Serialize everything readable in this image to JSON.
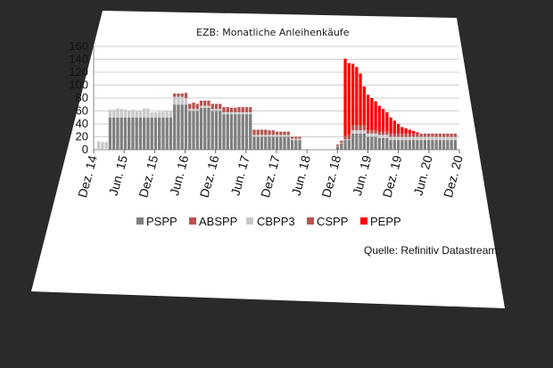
{
  "chart_data": {
    "type": "bar",
    "title": "EZB: Monatliche Anleihenkäufe",
    "source": "Quelle: Refinitiv Datastream",
    "ylim": [
      0,
      160
    ],
    "yticks": [
      "0",
      "20",
      "40",
      "60",
      "80",
      "100",
      "120",
      "140",
      "160"
    ],
    "xticks": [
      "Dez. 14",
      "Jun. 15",
      "Dez. 15",
      "Jun. 16",
      "Dez. 16",
      "Jun. 17",
      "Dez. 17",
      "Jun. 18",
      "Dez. 18",
      "Jun. 19",
      "Dez. 19",
      "Jun. 20",
      "Dez. 20"
    ],
    "grid": true,
    "legend_position": "bottom",
    "stacked": true,
    "colors": {
      "PSPP": "#7f7f7f",
      "ABSPP": "#c0504d",
      "CBPP3": "#c8c8c8",
      "CSPP": "#b85450",
      "PEPP": "#ff0000",
      "background": "#2a2a2a",
      "panel": "#ffffff"
    },
    "series": [
      {
        "name": "PSPP",
        "values": [
          0,
          0,
          0,
          50,
          50,
          50,
          50,
          50,
          50,
          50,
          50,
          50,
          50,
          50,
          50,
          50,
          50,
          50,
          50,
          50,
          70,
          70,
          70,
          70,
          60,
          60,
          60,
          65,
          65,
          65,
          60,
          60,
          60,
          55,
          55,
          55,
          55,
          55,
          55,
          55,
          55,
          20,
          20,
          20,
          20,
          20,
          20,
          20,
          20,
          20,
          20,
          15,
          15,
          15,
          0,
          0,
          0,
          0,
          0,
          0,
          0,
          0,
          0,
          5,
          10,
          15,
          15,
          25,
          25,
          25,
          25,
          20,
          20,
          20,
          18,
          18,
          18,
          15,
          15,
          15,
          15,
          15,
          15,
          15,
          15,
          15,
          15,
          15,
          15,
          15,
          15,
          15,
          15,
          15,
          15
        ]
      },
      {
        "name": "ABSPP",
        "values": [
          0,
          0,
          0,
          0,
          0,
          0,
          0,
          0,
          0,
          0,
          0,
          0,
          0,
          0,
          0,
          0,
          0,
          0,
          0,
          0,
          0,
          0,
          0,
          0,
          0,
          0,
          0,
          0,
          0,
          0,
          0,
          0,
          0,
          0,
          0,
          0,
          0,
          0,
          0,
          0,
          0,
          0,
          0,
          0,
          0,
          0,
          0,
          0,
          0,
          0,
          0,
          0,
          0,
          0,
          0,
          0,
          0,
          0,
          0,
          0,
          0,
          0,
          0,
          0,
          0,
          0,
          0,
          0,
          0,
          0,
          0,
          0,
          0,
          0,
          0,
          0,
          0,
          0,
          0,
          0,
          0,
          0,
          0,
          0,
          0,
          0,
          0,
          0,
          0,
          0,
          0,
          0,
          0,
          0,
          0
        ]
      },
      {
        "name": "CBPP3",
        "values": [
          13,
          12,
          12,
          12,
          12,
          14,
          13,
          12,
          10,
          12,
          10,
          11,
          14,
          14,
          8,
          8,
          9,
          9,
          10,
          10,
          12,
          12,
          12,
          10,
          3,
          3,
          3,
          3,
          3,
          3,
          3,
          3,
          3,
          3,
          3,
          3,
          3,
          3,
          3,
          3,
          3,
          3,
          3,
          3,
          3,
          3,
          3,
          3,
          3,
          3,
          3,
          2,
          2,
          2,
          1,
          1,
          1,
          1,
          1,
          1,
          1,
          1,
          1,
          1,
          1,
          1,
          1,
          5,
          5,
          5,
          5,
          5,
          5,
          5,
          5,
          5,
          5,
          5,
          5,
          5,
          5,
          5,
          5,
          5,
          5,
          5,
          5,
          5,
          5,
          5,
          5,
          5,
          5,
          5,
          5
        ]
      },
      {
        "name": "CSPP",
        "values": [
          0,
          0,
          0,
          0,
          0,
          0,
          0,
          0,
          0,
          0,
          0,
          0,
          0,
          0,
          0,
          0,
          0,
          0,
          0,
          0,
          5,
          5,
          5,
          8,
          8,
          10,
          8,
          8,
          8,
          8,
          8,
          8,
          8,
          8,
          8,
          7,
          7,
          8,
          8,
          8,
          8,
          8,
          8,
          8,
          8,
          7,
          7,
          5,
          5,
          5,
          5,
          3,
          3,
          3,
          0,
          0,
          0,
          0,
          0,
          0,
          0,
          0,
          0,
          2,
          3,
          5,
          8,
          8,
          8,
          8,
          8,
          5,
          5,
          5,
          5,
          5,
          5,
          5,
          5,
          5,
          5,
          5,
          5,
          5,
          5,
          5,
          5,
          5,
          5,
          5,
          5,
          5,
          5,
          5,
          5
        ]
      },
      {
        "name": "PEPP",
        "values": [
          0,
          0,
          0,
          0,
          0,
          0,
          0,
          0,
          0,
          0,
          0,
          0,
          0,
          0,
          0,
          0,
          0,
          0,
          0,
          0,
          0,
          0,
          0,
          0,
          0,
          0,
          0,
          0,
          0,
          0,
          0,
          0,
          0,
          0,
          0,
          0,
          0,
          0,
          0,
          0,
          0,
          0,
          0,
          0,
          0,
          0,
          0,
          0,
          0,
          0,
          0,
          0,
          0,
          0,
          0,
          0,
          0,
          0,
          0,
          0,
          0,
          0,
          0,
          0,
          0,
          120,
          110,
          95,
          90,
          80,
          60,
          55,
          50,
          45,
          40,
          35,
          30,
          25,
          20,
          15,
          10,
          8,
          6,
          4,
          2,
          0,
          0,
          0,
          0,
          0,
          0,
          0,
          0,
          0,
          0
        ]
      }
    ]
  }
}
